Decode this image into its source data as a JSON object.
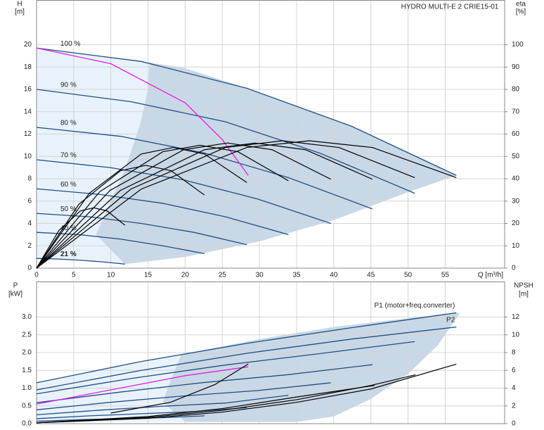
{
  "chart_data": [
    {
      "type": "line",
      "title": "HYDRO MULTI-E 2 CRIE15-01",
      "ylabel": [
        "H",
        "[m]"
      ],
      "y2label": [
        "eta",
        "[%]"
      ],
      "xlabel": "Q [m³/h]",
      "xlim": [
        0,
        63
      ],
      "xticks": [
        0,
        5,
        10,
        15,
        20,
        25,
        30,
        35,
        40,
        45,
        50,
        55
      ],
      "xtick_labels": true,
      "ylim": [
        0,
        24
      ],
      "yticks": [
        0,
        2,
        4,
        6,
        8,
        10,
        12,
        14,
        16,
        18,
        20
      ],
      "y2lim": [
        0,
        120
      ],
      "y2ticks": [
        0,
        10,
        20,
        30,
        40,
        50,
        60,
        70,
        80,
        90,
        100
      ],
      "grid": true,
      "name_position": "curve-start",
      "regions": [
        {
          "color": "#e8f2fc",
          "x": [
            0,
            14.1,
            28.3,
            42.4,
            56.5,
            50,
            40,
            30,
            20,
            11.9,
            8.9,
            5.9,
            3.0,
            0
          ],
          "values": [
            19.7,
            18.5,
            16.1,
            12.7,
            8.3,
            6.8,
            4.3,
            2.4,
            1.0,
            0.36,
            0.56,
            0.71,
            0.81,
            0.87
          ]
        },
        {
          "color": "#c9d8e6",
          "x": [
            15.2,
            20,
            28.3,
            42.4,
            56.5,
            50,
            40,
            30,
            20,
            11.9,
            8,
            12,
            14,
            15
          ],
          "values": [
            18.4,
            17.9,
            16.1,
            12.7,
            8.3,
            6.8,
            4.3,
            2.4,
            1.0,
            0.36,
            3,
            9,
            13,
            16
          ]
        }
      ],
      "series": [
        {
          "name": "100 %",
          "color": "#1f4e87",
          "x": [
            0,
            14.1,
            28.3,
            42.4,
            56.5
          ],
          "values": [
            19.7,
            18.5,
            16.1,
            12.7,
            8.3
          ]
        },
        {
          "name": "90 %",
          "color": "#1f4e87",
          "x": [
            0,
            12.7,
            25.4,
            38.1,
            50.9
          ],
          "values": [
            16.0,
            14.9,
            13.1,
            10.3,
            6.7
          ]
        },
        {
          "name": "80 %",
          "color": "#1f4e87",
          "x": [
            0,
            11.3,
            22.6,
            33.9,
            45.2
          ],
          "values": [
            12.6,
            11.8,
            10.3,
            8.1,
            5.3
          ]
        },
        {
          "name": "70 %",
          "color": "#1f4e87",
          "x": [
            0,
            9.9,
            19.8,
            29.7,
            39.6
          ],
          "values": [
            9.7,
            9.0,
            7.9,
            6.2,
            4.0
          ]
        },
        {
          "name": "60 %",
          "color": "#1f4e87",
          "x": [
            0,
            8.5,
            17.0,
            25.4,
            33.9
          ],
          "values": [
            7.1,
            6.6,
            5.8,
            4.6,
            3.0
          ]
        },
        {
          "name": "50 %",
          "color": "#1f4e87",
          "x": [
            0,
            7.1,
            14.1,
            21.2,
            28.3
          ],
          "values": [
            4.9,
            4.6,
            4.0,
            3.2,
            2.1
          ]
        },
        {
          "name": "40 %",
          "color": "#1f4e87",
          "x": [
            0,
            5.7,
            11.3,
            17.0,
            22.6
          ],
          "values": [
            3.2,
            3.0,
            2.6,
            2.0,
            1.3
          ]
        },
        {
          "name": "21 %",
          "bold": true,
          "color": "#1f4e87",
          "x": [
            0,
            3.0,
            5.9,
            8.9,
            11.9
          ],
          "values": [
            0.87,
            0.81,
            0.71,
            0.56,
            0.36
          ]
        },
        {
          "color": "#e020e0",
          "x": [
            0,
            10,
            20,
            25,
            28.5
          ],
          "values": [
            19.7,
            18.3,
            14.8,
            11.5,
            8.3
          ]
        },
        {
          "color": "#000000",
          "axis": "y2",
          "x": [
            0,
            14.1,
            28.3,
            36.7,
            45.2,
            56.5
          ],
          "values": [
            0,
            35.4,
            54.0,
            57,
            54.0,
            40.5
          ]
        },
        {
          "color": "#000000",
          "axis": "y2",
          "x": [
            0,
            12.7,
            25.4,
            33.1,
            40.7,
            50.9
          ],
          "values": [
            0,
            35.4,
            54.0,
            57,
            54.0,
            40.5
          ]
        },
        {
          "color": "#000000",
          "axis": "y2",
          "x": [
            0,
            11.3,
            22.6,
            29.4,
            36.2,
            45.2
          ],
          "values": [
            0,
            34.8,
            53.0,
            56,
            53.0,
            39.8
          ]
        },
        {
          "color": "#000000",
          "axis": "y2",
          "x": [
            0,
            9.9,
            19.8,
            25.7,
            31.7,
            39.6
          ],
          "values": [
            0,
            34.8,
            53.0,
            56,
            53.0,
            39.8
          ]
        },
        {
          "color": "#000000",
          "axis": "y2",
          "x": [
            0,
            8.5,
            17.0,
            22.0,
            27.1,
            33.9
          ],
          "values": [
            0,
            34.2,
            52.1,
            55,
            52.1,
            39.1
          ]
        },
        {
          "color": "#000000",
          "axis": "y2",
          "x": [
            0,
            7.1,
            14.1,
            18.4,
            22.6,
            28.3
          ],
          "values": [
            0,
            33.5,
            51.1,
            54,
            51.1,
            38.3
          ]
        },
        {
          "color": "#000000",
          "axis": "y2",
          "x": [
            0,
            5.7,
            11.3,
            14.7,
            18.1,
            22.6
          ],
          "values": [
            0,
            28.6,
            43.6,
            46,
            43.6,
            32.7
          ]
        },
        {
          "color": "#000000",
          "axis": "y2",
          "x": [
            0,
            3.0,
            5.9,
            7.7,
            9.5,
            11.9
          ],
          "values": [
            0,
            16.8,
            25.6,
            27,
            25.6,
            19.2
          ]
        }
      ]
    },
    {
      "type": "line",
      "ylabel": [
        "P",
        "[kW]"
      ],
      "y2label": [
        "NPSH",
        "[m]"
      ],
      "xlim": [
        0,
        63
      ],
      "xticks": [
        0,
        5,
        10,
        15,
        20,
        25,
        30,
        35,
        40,
        45,
        50,
        55
      ],
      "xtick_labels": false,
      "ylim": [
        0,
        4
      ],
      "yticks": [
        {
          "value": 0,
          "label": "0.0"
        },
        {
          "value": 0.5,
          "label": "0.5"
        },
        {
          "value": 1,
          "label": "1.0"
        },
        {
          "value": 1.5,
          "label": "1.5"
        },
        {
          "value": 2,
          "label": "2.0"
        },
        {
          "value": 2.5,
          "label": "2.5"
        },
        {
          "value": 3,
          "label": "3.0"
        }
      ],
      "y2lim": [
        0,
        16
      ],
      "y2ticks": [
        0,
        2,
        4,
        6,
        8,
        10,
        12
      ],
      "grid": true,
      "name_position": "curve-end",
      "regions": [
        {
          "color": "#e8f2fc",
          "x": [
            0,
            19.5,
            18,
            17,
            20,
            0
          ],
          "values": [
            1.15,
            1.95,
            1.2,
            0.6,
            0.05,
            0.05
          ]
        },
        {
          "color": "#c9d8e6",
          "x": [
            19.5,
            30,
            40,
            50,
            57,
            54,
            50,
            45,
            40,
            35,
            20,
            17,
            18
          ],
          "values": [
            1.95,
            2.38,
            2.72,
            2.97,
            3.12,
            2.2,
            1.4,
            0.7,
            0.2,
            0.05,
            0.05,
            0.6,
            1.2
          ]
        }
      ],
      "series": [
        {
          "name": "P1 (motor+freq.converter)",
          "color": "#1f4e87",
          "x": [
            0,
            14.1,
            28.3,
            42.4,
            56.5
          ],
          "values": [
            1.15,
            1.75,
            2.26,
            2.7,
            3.12
          ]
        },
        {
          "name": "P2",
          "color": "#1f4e87",
          "x": [
            0,
            14.1,
            28.3,
            42.4,
            56.5
          ],
          "values": [
            0.95,
            1.5,
            1.98,
            2.38,
            2.72
          ]
        },
        {
          "color": "#1f4e87",
          "x": [
            0,
            12.7,
            25.4,
            38.1,
            50.9
          ],
          "values": [
            0.84,
            1.27,
            1.65,
            1.97,
            2.31
          ]
        },
        {
          "color": "#1f4e87",
          "x": [
            0,
            11.3,
            22.6,
            33.9,
            45.2
          ],
          "values": [
            0.59,
            0.89,
            1.16,
            1.38,
            1.66
          ]
        },
        {
          "color": "#1f4e87",
          "x": [
            0,
            9.9,
            19.8,
            29.7,
            39.6
          ],
          "values": [
            0.39,
            0.6,
            0.78,
            0.93,
            1.15
          ]
        },
        {
          "color": "#1f4e87",
          "x": [
            0,
            8.5,
            17.0,
            25.4,
            33.9
          ],
          "values": [
            0.25,
            0.38,
            0.49,
            0.58,
            0.8
          ]
        },
        {
          "color": "#1f4e87",
          "x": [
            0,
            7.1,
            14.1,
            21.2,
            28.3
          ],
          "values": [
            0.14,
            0.22,
            0.28,
            0.34,
            0.45
          ]
        },
        {
          "color": "#1f4e87",
          "x": [
            0,
            5.7,
            11.3,
            17.0,
            22.6
          ],
          "values": [
            0.07,
            0.11,
            0.14,
            0.17,
            0.22
          ]
        },
        {
          "color": "#e020e0",
          "x": [
            0,
            10,
            20,
            28.5
          ],
          "values": [
            0.55,
            0.95,
            1.35,
            1.6
          ]
        },
        {
          "color": "#000000",
          "x": [
            10,
            18,
            24,
            28.5
          ],
          "values": [
            0.3,
            0.6,
            1.1,
            1.68
          ]
        },
        {
          "color": "#000000",
          "axis": "y2",
          "x": [
            0,
            15,
            25,
            35,
            45,
            56.5
          ],
          "values": [
            0.1,
            0.6,
            1.3,
            2.4,
            3.9,
            6.7
          ]
        },
        {
          "color": "#000000",
          "axis": "y2",
          "x": [
            0,
            15,
            25,
            35,
            45,
            51
          ],
          "values": [
            0.1,
            0.7,
            1.5,
            2.7,
            4.3,
            5.5
          ]
        },
        {
          "color": "#000000",
          "axis": "y2",
          "x": [
            0,
            15,
            25,
            35,
            45.5
          ],
          "values": [
            0.1,
            0.8,
            1.7,
            3.0,
            4.3
          ]
        }
      ]
    }
  ]
}
